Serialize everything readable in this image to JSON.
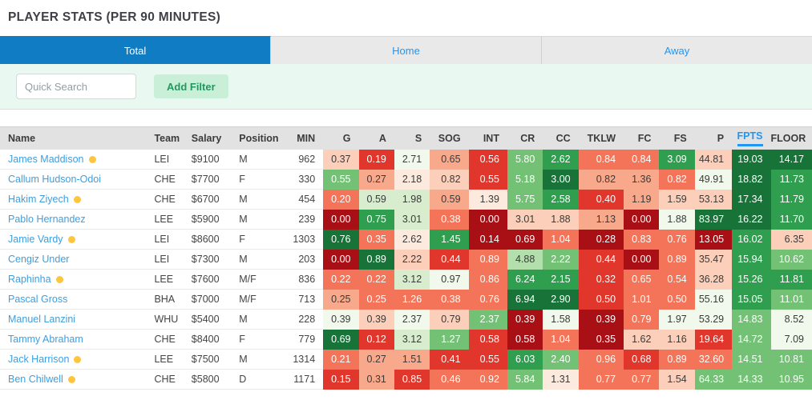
{
  "title": "PLAYER STATS (PER 90 MINUTES)",
  "tabs": [
    {
      "label": "Total",
      "active": true
    },
    {
      "label": "Home",
      "active": false
    },
    {
      "label": "Away",
      "active": false
    }
  ],
  "filter": {
    "search_placeholder": "Quick Search",
    "add_filter_label": "Add Filter"
  },
  "colors": {
    "active_tab": "#0f7cc4",
    "tab_link": "#2196f3",
    "player_link": "#3f9ede",
    "panel_mint": "#e9f8f0",
    "add_filter_bg": "#c9efd9",
    "add_filter_text": "#21995e",
    "status_dot": "#ffc53d",
    "header_bg": "#e2e2e2",
    "sorted_header": "#2196f3",
    "heatmap": {
      "R5": "#a91016",
      "R4": "#e0362b",
      "R3": "#f37458",
      "R1": "#f8a98c",
      "R0b": "#fbcfba",
      "R0": "#fdeade",
      "G0": "#f1f9ec",
      "G1": "#d7edcd",
      "G2": "#b2dfab",
      "G3": "#72c174",
      "G4": "#2f9e4e",
      "G5": "#187339"
    },
    "dark_text_keys": [
      "R1",
      "R0b",
      "R0",
      "G0",
      "G1",
      "G2"
    ],
    "dark_text": "#3a3a3a",
    "light_text": "#ffffff"
  },
  "table": {
    "columns": [
      "Name",
      "Team",
      "Salary",
      "Position",
      "MIN",
      "G",
      "A",
      "S",
      "SOG",
      "INT",
      "CR",
      "CC",
      "TKLW",
      "FC",
      "FS",
      "P",
      "FPTS",
      "FLOOR"
    ],
    "sorted_column": "FPTS",
    "rows": [
      {
        "name": "James Maddison",
        "dot": true,
        "team": "LEI",
        "salary": "$9100",
        "position": "M",
        "min": "962",
        "stats": [
          [
            "0.37",
            "R0b"
          ],
          [
            "0.19",
            "R4"
          ],
          [
            "2.71",
            "G0"
          ],
          [
            "0.65",
            "R1"
          ],
          [
            "0.56",
            "R4"
          ],
          [
            "5.80",
            "G3"
          ],
          [
            "2.62",
            "G4"
          ],
          [
            "0.84",
            "R3"
          ],
          [
            "0.84",
            "R3"
          ],
          [
            "3.09",
            "G4"
          ],
          [
            "44.81",
            "R0b"
          ],
          [
            "19.03",
            "G5"
          ],
          [
            "14.17",
            "G5"
          ]
        ]
      },
      {
        "name": "Callum Hudson-Odoi",
        "dot": false,
        "team": "CHE",
        "salary": "$7700",
        "position": "F",
        "min": "330",
        "stats": [
          [
            "0.55",
            "G3"
          ],
          [
            "0.27",
            "R1"
          ],
          [
            "2.18",
            "R0"
          ],
          [
            "0.82",
            "R0b"
          ],
          [
            "0.55",
            "R4"
          ],
          [
            "5.18",
            "G3"
          ],
          [
            "3.00",
            "G5"
          ],
          [
            "0.82",
            "R1"
          ],
          [
            "1.36",
            "R1"
          ],
          [
            "0.82",
            "R3"
          ],
          [
            "49.91",
            "G0"
          ],
          [
            "18.82",
            "G5"
          ],
          [
            "11.73",
            "G4"
          ]
        ]
      },
      {
        "name": "Hakim Ziyech",
        "dot": true,
        "team": "CHE",
        "salary": "$6700",
        "position": "M",
        "min": "454",
        "stats": [
          [
            "0.20",
            "R3"
          ],
          [
            "0.59",
            "G1"
          ],
          [
            "1.98",
            "G1"
          ],
          [
            "0.59",
            "R1"
          ],
          [
            "1.39",
            "R0"
          ],
          [
            "5.75",
            "G3"
          ],
          [
            "2.58",
            "G4"
          ],
          [
            "0.40",
            "R4"
          ],
          [
            "1.19",
            "R1"
          ],
          [
            "1.59",
            "R0b"
          ],
          [
            "53.13",
            "R0b"
          ],
          [
            "17.34",
            "G5"
          ],
          [
            "11.79",
            "G4"
          ]
        ]
      },
      {
        "name": "Pablo Hernandez",
        "dot": false,
        "team": "LEE",
        "salary": "$5900",
        "position": "M",
        "min": "239",
        "stats": [
          [
            "0.00",
            "R5"
          ],
          [
            "0.75",
            "G4"
          ],
          [
            "3.01",
            "G1"
          ],
          [
            "0.38",
            "R3"
          ],
          [
            "0.00",
            "R5"
          ],
          [
            "3.01",
            "R0b"
          ],
          [
            "1.88",
            "R0b"
          ],
          [
            "1.13",
            "R1"
          ],
          [
            "0.00",
            "R5"
          ],
          [
            "1.88",
            "G0"
          ],
          [
            "83.97",
            "G5"
          ],
          [
            "16.22",
            "G5"
          ],
          [
            "11.70",
            "G4"
          ]
        ]
      },
      {
        "name": "Jamie Vardy",
        "dot": true,
        "team": "LEI",
        "salary": "$8600",
        "position": "F",
        "min": "1303",
        "stats": [
          [
            "0.76",
            "G5"
          ],
          [
            "0.35",
            "R3"
          ],
          [
            "2.62",
            "R0"
          ],
          [
            "1.45",
            "G4"
          ],
          [
            "0.14",
            "R5"
          ],
          [
            "0.69",
            "R5"
          ],
          [
            "1.04",
            "R3"
          ],
          [
            "0.28",
            "R5"
          ],
          [
            "0.83",
            "R3"
          ],
          [
            "0.76",
            "R3"
          ],
          [
            "13.05",
            "R5"
          ],
          [
            "16.02",
            "G4"
          ],
          [
            "6.35",
            "R0b"
          ]
        ]
      },
      {
        "name": "Cengiz Under",
        "dot": false,
        "team": "LEI",
        "salary": "$7300",
        "position": "M",
        "min": "203",
        "stats": [
          [
            "0.00",
            "R5"
          ],
          [
            "0.89",
            "G5"
          ],
          [
            "2.22",
            "R0b"
          ],
          [
            "0.44",
            "R4"
          ],
          [
            "0.89",
            "R3"
          ],
          [
            "4.88",
            "G2"
          ],
          [
            "2.22",
            "G3"
          ],
          [
            "0.44",
            "R4"
          ],
          [
            "0.00",
            "R5"
          ],
          [
            "0.89",
            "R3"
          ],
          [
            "35.47",
            "R0b"
          ],
          [
            "15.94",
            "G4"
          ],
          [
            "10.62",
            "G3"
          ]
        ]
      },
      {
        "name": "Raphinha",
        "dot": true,
        "team": "LEE",
        "salary": "$7600",
        "position": "M/F",
        "min": "836",
        "stats": [
          [
            "0.22",
            "R3"
          ],
          [
            "0.22",
            "R3"
          ],
          [
            "3.12",
            "G1"
          ],
          [
            "0.97",
            "G0"
          ],
          [
            "0.86",
            "R3"
          ],
          [
            "6.24",
            "G4"
          ],
          [
            "2.15",
            "G4"
          ],
          [
            "0.32",
            "R4"
          ],
          [
            "0.65",
            "R3"
          ],
          [
            "0.54",
            "R3"
          ],
          [
            "36.28",
            "R0b"
          ],
          [
            "15.26",
            "G4"
          ],
          [
            "11.81",
            "G4"
          ]
        ]
      },
      {
        "name": "Pascal Gross",
        "dot": false,
        "team": "BHA",
        "salary": "$7000",
        "position": "M/F",
        "min": "713",
        "stats": [
          [
            "0.25",
            "R1"
          ],
          [
            "0.25",
            "R3"
          ],
          [
            "1.26",
            "R3"
          ],
          [
            "0.38",
            "R3"
          ],
          [
            "0.76",
            "R3"
          ],
          [
            "6.94",
            "G5"
          ],
          [
            "2.90",
            "G5"
          ],
          [
            "0.50",
            "R4"
          ],
          [
            "1.01",
            "R3"
          ],
          [
            "0.50",
            "R3"
          ],
          [
            "55.16",
            "G0"
          ],
          [
            "15.05",
            "G4"
          ],
          [
            "11.01",
            "G3"
          ]
        ]
      },
      {
        "name": "Manuel Lanzini",
        "dot": false,
        "team": "WHU",
        "salary": "$5400",
        "position": "M",
        "min": "228",
        "stats": [
          [
            "0.39",
            "G0"
          ],
          [
            "0.39",
            "R0b"
          ],
          [
            "2.37",
            "G0"
          ],
          [
            "0.79",
            "R0b"
          ],
          [
            "2.37",
            "G3"
          ],
          [
            "0.39",
            "R5"
          ],
          [
            "1.58",
            "G0"
          ],
          [
            "0.39",
            "R5"
          ],
          [
            "0.79",
            "R3"
          ],
          [
            "1.97",
            "G0"
          ],
          [
            "53.29",
            "G0"
          ],
          [
            "14.83",
            "G3"
          ],
          [
            "8.52",
            "G0"
          ]
        ]
      },
      {
        "name": "Tammy Abraham",
        "dot": false,
        "team": "CHE",
        "salary": "$8400",
        "position": "F",
        "min": "779",
        "stats": [
          [
            "0.69",
            "G5"
          ],
          [
            "0.12",
            "R4"
          ],
          [
            "3.12",
            "G1"
          ],
          [
            "1.27",
            "G3"
          ],
          [
            "0.58",
            "R4"
          ],
          [
            "0.58",
            "R5"
          ],
          [
            "1.04",
            "R3"
          ],
          [
            "0.35",
            "R5"
          ],
          [
            "1.62",
            "R0b"
          ],
          [
            "1.16",
            "R0b"
          ],
          [
            "19.64",
            "R4"
          ],
          [
            "14.72",
            "G3"
          ],
          [
            "7.09",
            "G0"
          ]
        ]
      },
      {
        "name": "Jack Harrison",
        "dot": true,
        "team": "LEE",
        "salary": "$7500",
        "position": "M",
        "min": "1314",
        "stats": [
          [
            "0.21",
            "R3"
          ],
          [
            "0.27",
            "R1"
          ],
          [
            "1.51",
            "R1"
          ],
          [
            "0.41",
            "R4"
          ],
          [
            "0.55",
            "R4"
          ],
          [
            "6.03",
            "G4"
          ],
          [
            "2.40",
            "G3"
          ],
          [
            "0.96",
            "R3"
          ],
          [
            "0.68",
            "R4"
          ],
          [
            "0.89",
            "R3"
          ],
          [
            "32.60",
            "R3"
          ],
          [
            "14.51",
            "G3"
          ],
          [
            "10.81",
            "G3"
          ]
        ]
      },
      {
        "name": "Ben Chilwell",
        "dot": true,
        "team": "CHE",
        "salary": "$5800",
        "position": "D",
        "min": "1171",
        "stats": [
          [
            "0.15",
            "R4"
          ],
          [
            "0.31",
            "R1"
          ],
          [
            "0.85",
            "R4"
          ],
          [
            "0.46",
            "R3"
          ],
          [
            "0.92",
            "R3"
          ],
          [
            "5.84",
            "G3"
          ],
          [
            "1.31",
            "R0"
          ],
          [
            "0.77",
            "R3"
          ],
          [
            "0.77",
            "R3"
          ],
          [
            "1.54",
            "R0b"
          ],
          [
            "64.33",
            "G3"
          ],
          [
            "14.33",
            "G3"
          ],
          [
            "10.95",
            "G3"
          ]
        ]
      }
    ]
  }
}
